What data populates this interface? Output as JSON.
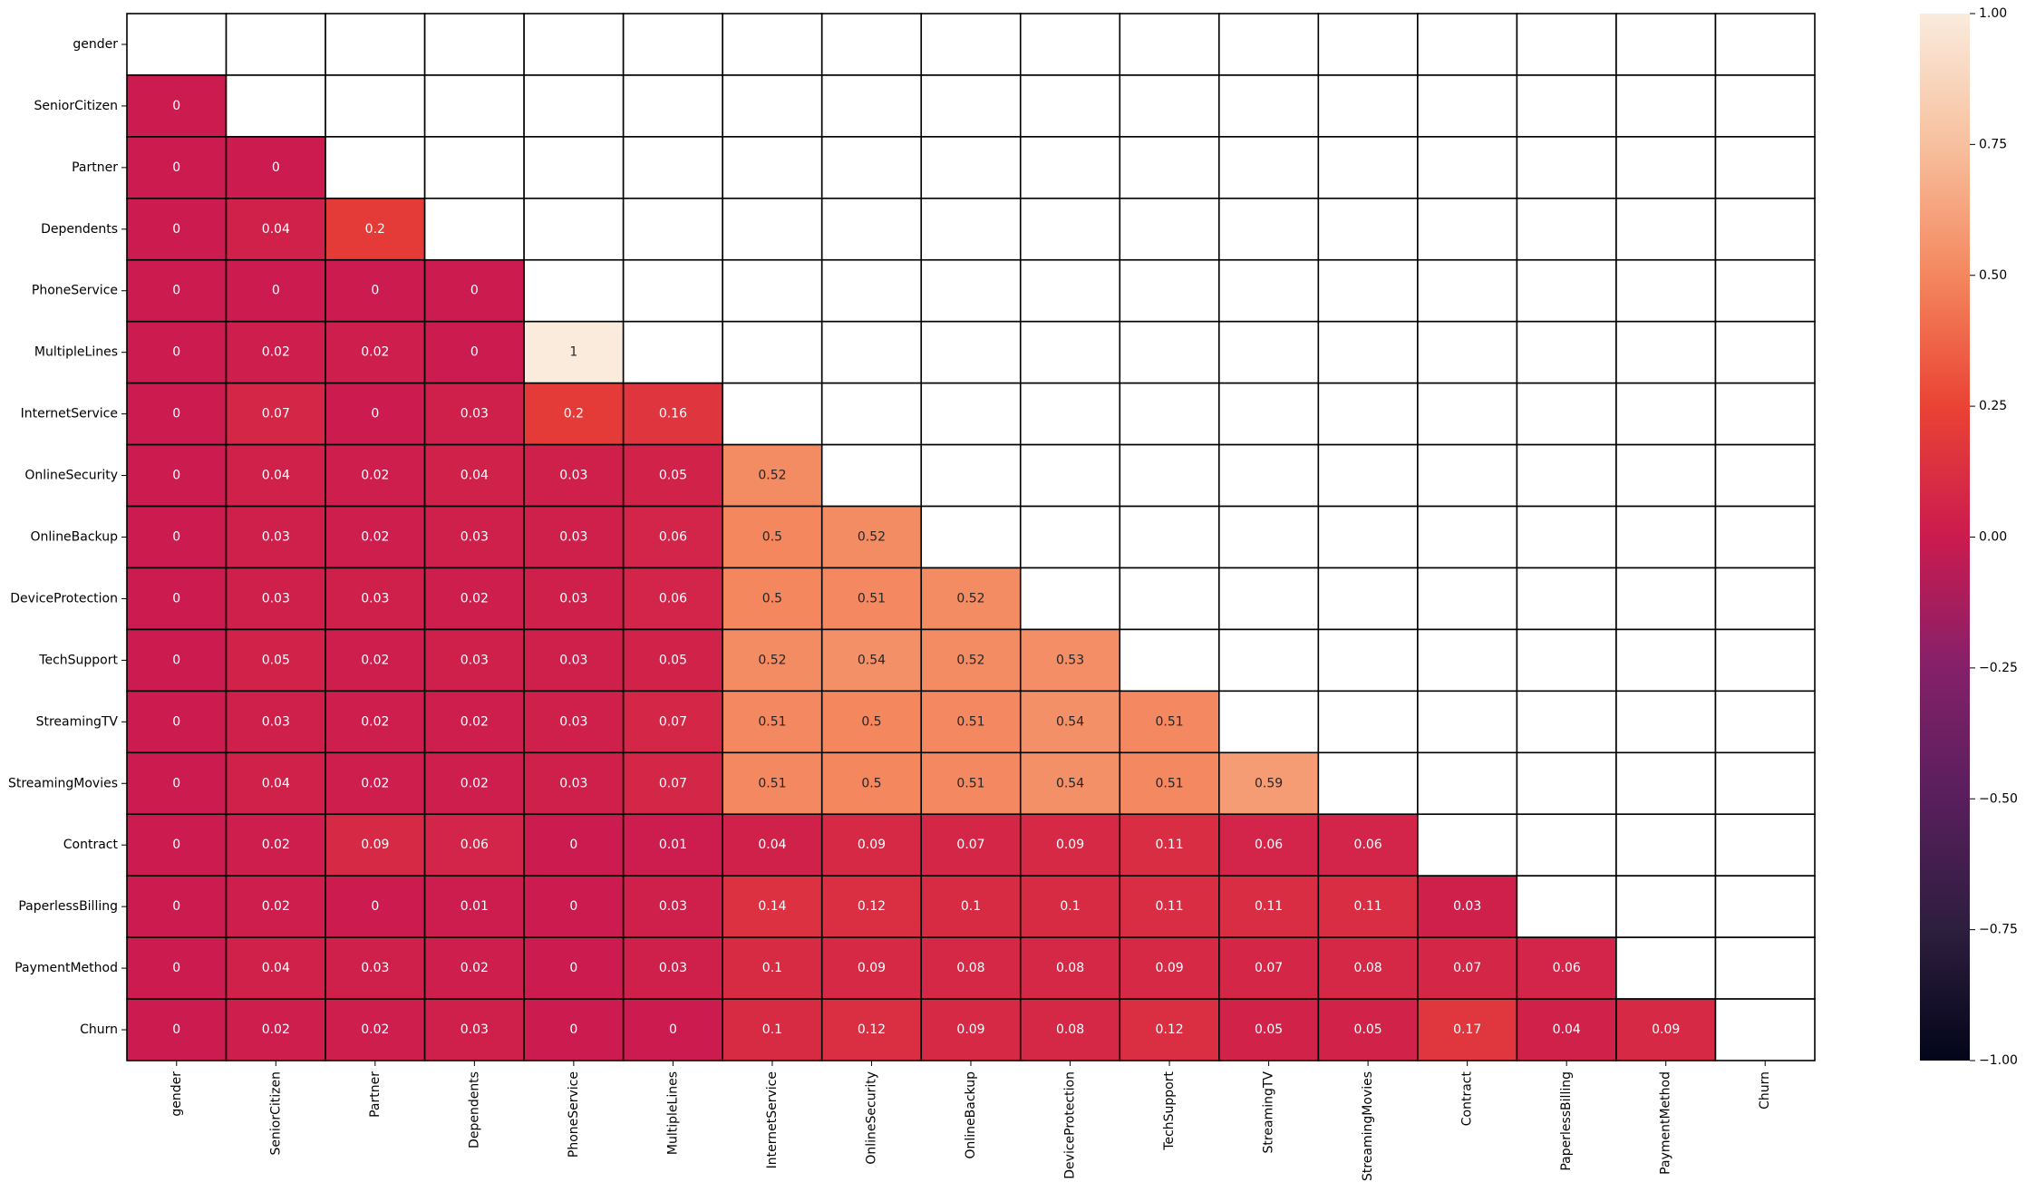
{
  "chart_data": {
    "type": "heatmap",
    "title": "",
    "xlabel": "",
    "ylabel": "",
    "labels": [
      "gender",
      "SeniorCitizen",
      "Partner",
      "Dependents",
      "PhoneService",
      "MultipleLines",
      "InternetService",
      "OnlineSecurity",
      "OnlineBackup",
      "DeviceProtection",
      "TechSupport",
      "StreamingTV",
      "StreamingMovies",
      "Contract",
      "PaperlessBilling",
      "PaymentMethod",
      "Churn"
    ],
    "mask": "upper-triangle-including-diagonal",
    "lower_triangle_values": [
      [],
      [
        0
      ],
      [
        0,
        0
      ],
      [
        0,
        0.04,
        0.2
      ],
      [
        0,
        0,
        0,
        0
      ],
      [
        0,
        0.02,
        0.02,
        0,
        1
      ],
      [
        0,
        0.07,
        0,
        0.03,
        0.2,
        0.16
      ],
      [
        0,
        0.04,
        0.02,
        0.04,
        0.03,
        0.05,
        0.52
      ],
      [
        0,
        0.03,
        0.02,
        0.03,
        0.03,
        0.06,
        0.5,
        0.52
      ],
      [
        0,
        0.03,
        0.03,
        0.02,
        0.03,
        0.06,
        0.5,
        0.51,
        0.52
      ],
      [
        0,
        0.05,
        0.02,
        0.03,
        0.03,
        0.05,
        0.52,
        0.54,
        0.52,
        0.53
      ],
      [
        0,
        0.03,
        0.02,
        0.02,
        0.03,
        0.07,
        0.51,
        0.5,
        0.51,
        0.54,
        0.51
      ],
      [
        0,
        0.04,
        0.02,
        0.02,
        0.03,
        0.07,
        0.51,
        0.5,
        0.51,
        0.54,
        0.51,
        0.59
      ],
      [
        0,
        0.02,
        0.09,
        0.06,
        0,
        0.01,
        0.04,
        0.09,
        0.07,
        0.09,
        0.11,
        0.06,
        0.06
      ],
      [
        0,
        0.02,
        0,
        0.01,
        0,
        0.03,
        0.14,
        0.12,
        0.1,
        0.1,
        0.11,
        0.11,
        0.11,
        0.03
      ],
      [
        0,
        0.04,
        0.03,
        0.02,
        0,
        0.03,
        0.1,
        0.09,
        0.08,
        0.08,
        0.09,
        0.07,
        0.08,
        0.07,
        0.06
      ],
      [
        0,
        0.02,
        0.02,
        0.03,
        0,
        0,
        0.1,
        0.12,
        0.09,
        0.08,
        0.12,
        0.05,
        0.05,
        0.17,
        0.04,
        0.09
      ]
    ],
    "colorbar": {
      "range": [
        -1.0,
        1.0
      ],
      "ticks": [
        1.0,
        0.75,
        0.5,
        0.25,
        0.0,
        -0.25,
        -0.5,
        -0.75,
        -1.0
      ],
      "tick_labels": [
        "1.00",
        "0.75",
        "0.50",
        "0.25",
        "0.00",
        "−0.25",
        "−0.50",
        "−0.75",
        "−1.00"
      ],
      "colormap": "rocket",
      "colormap_stops": [
        {
          "v": -1.0,
          "color": "#03051a"
        },
        {
          "v": -0.75,
          "color": "#2d1e3e"
        },
        {
          "v": -0.5,
          "color": "#581f5c"
        },
        {
          "v": -0.25,
          "color": "#84206a"
        },
        {
          "v": 0.0,
          "color": "#cb1b4f"
        },
        {
          "v": 0.25,
          "color": "#ea4334"
        },
        {
          "v": 0.5,
          "color": "#f4875e"
        },
        {
          "v": 0.75,
          "color": "#f7c09e"
        },
        {
          "v": 1.0,
          "color": "#faebdd"
        }
      ]
    },
    "grid": true,
    "grid_color": "#000000",
    "legend": "colorbar-right"
  }
}
